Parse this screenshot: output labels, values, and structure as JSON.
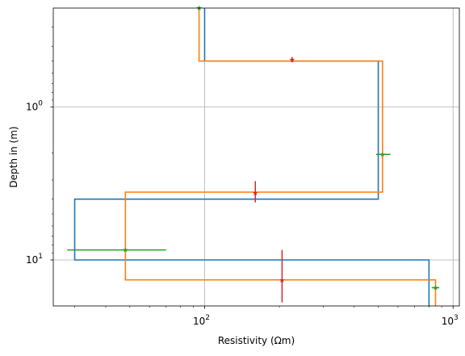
{
  "chart_data": {
    "type": "line",
    "title": "",
    "xlabel": "Resistivity (Ωm)",
    "ylabel": "Depth in (m)",
    "xscale": "log",
    "yscale": "log",
    "y_inverted": true,
    "xlim": [
      24.6,
      1060
    ],
    "ylim": [
      20,
      0.225
    ],
    "grid": true,
    "x_major_ticks": [
      {
        "value": 100,
        "base": "10",
        "exp": "2"
      },
      {
        "value": 1000,
        "base": "10",
        "exp": "3"
      }
    ],
    "y_major_ticks": [
      {
        "value": 1,
        "base": "10",
        "exp": "0"
      },
      {
        "value": 10,
        "base": "10",
        "exp": "1"
      }
    ],
    "series": [
      {
        "color": "#1f77b4",
        "x": [
          100,
          100,
          500,
          500,
          30,
          30,
          800,
          800
        ],
        "y": [
          0.225,
          0.5,
          0.5,
          4.0,
          4.0,
          10.0,
          10.0,
          20
        ]
      },
      {
        "color": "#ff7f0e",
        "x": [
          95,
          95,
          520,
          520,
          48,
          48,
          850,
          850
        ],
        "y": [
          0.225,
          0.5,
          0.5,
          3.6,
          3.6,
          13.5,
          13.5,
          20
        ]
      }
    ],
    "error_points": [
      {
        "color": "#d62728",
        "x": 225,
        "y": 0.49,
        "xerr": [
          223,
          227
        ],
        "yerr": [
          0.47,
          0.51
        ]
      },
      {
        "color": "#2ca02c",
        "x": 95,
        "y": 0.225,
        "xerr": [
          95,
          95
        ],
        "yerr": [
          0.225,
          0.225
        ]
      },
      {
        "color": "#2ca02c",
        "x": 520,
        "y": 2.04,
        "xerr": [
          490,
          560
        ],
        "yerr": [
          2.04,
          2.04
        ]
      },
      {
        "color": "#d62728",
        "x": 160,
        "y": 3.65,
        "xerr": [
          159,
          161
        ],
        "yerr": [
          3.05,
          4.2
        ]
      },
      {
        "color": "#2ca02c",
        "x": 48,
        "y": 8.6,
        "xerr": [
          28,
          70
        ],
        "yerr": [
          8.6,
          8.6
        ]
      },
      {
        "color": "#d62728",
        "x": 205,
        "y": 13.6,
        "xerr": [
          204,
          206
        ],
        "yerr": [
          8.6,
          19.0
        ]
      },
      {
        "color": "#2ca02c",
        "x": 850,
        "y": 15.2,
        "xerr": [
          820,
          880
        ],
        "yerr": [
          15.2,
          15.2
        ]
      }
    ]
  }
}
